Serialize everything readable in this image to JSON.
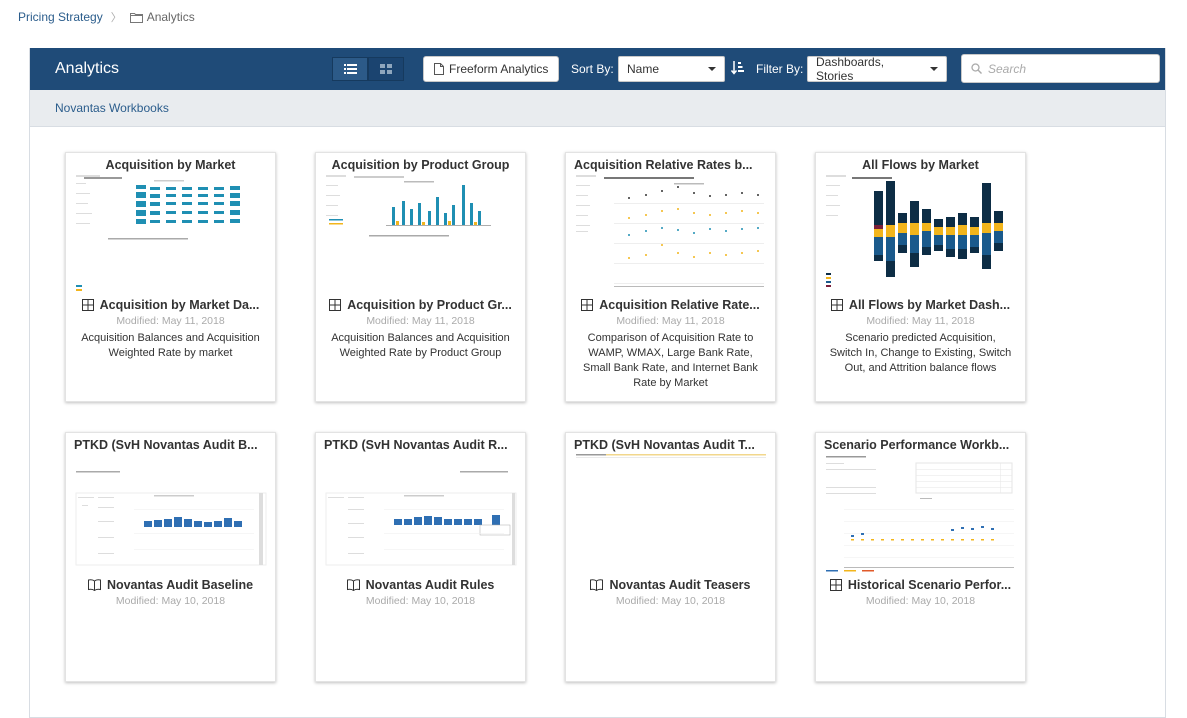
{
  "breadcrumb": {
    "root": "Pricing Strategy",
    "separator": "〉",
    "current": "Analytics"
  },
  "header": {
    "title": "Analytics",
    "freeform_label": "Freeform Analytics",
    "sort_label": "Sort By:",
    "sort_value": "Name",
    "filter_label": "Filter By:",
    "filter_value": "Dashboards, Stories",
    "search_placeholder": "Search"
  },
  "subheader": {
    "label": "Novantas Workbooks"
  },
  "cards": [
    {
      "title": "Acquisition by Market",
      "type": "dashboard",
      "name": "Acquisition by Market Da...",
      "modified": "Modified: May 11, 2018",
      "description": "Acquisition Balances and Acquisition Weighted Rate by market"
    },
    {
      "title": "Acquisition by Product Group",
      "type": "dashboard",
      "name": "Acquisition by Product Gr...",
      "modified": "Modified: May 11, 2018",
      "description": "Acquisition Balances and Acquisition Weighted Rate by Product Group"
    },
    {
      "title": "Acquisition Relative Rates b...",
      "type": "dashboard",
      "name": "Acquisition Relative Rate...",
      "modified": "Modified: May 11, 2018",
      "description": "Comparison of Acquisition Rate to WAMP, WMAX, Large Bank Rate, Small Bank Rate, and Internet Bank Rate by Market"
    },
    {
      "title": "All Flows by Market",
      "type": "dashboard",
      "name": "All Flows by Market Dash...",
      "modified": "Modified: May 11, 2018",
      "description": "Scenario predicted Acquisition, Switch In, Change to Existing, Switch Out, and Attrition balance flows"
    },
    {
      "title": "PTKD (SvH Novantas Audit B...",
      "type": "story",
      "name": "Novantas Audit Baseline",
      "modified": "Modified: May 10, 2018",
      "description": ""
    },
    {
      "title": "PTKD (SvH Novantas Audit R...",
      "type": "story",
      "name": "Novantas Audit Rules",
      "modified": "Modified: May 10, 2018",
      "description": ""
    },
    {
      "title": "PTKD (SvH Novantas Audit T...",
      "type": "story",
      "name": "Novantas Audit Teasers",
      "modified": "Modified: May 10, 2018",
      "description": ""
    },
    {
      "title": "Scenario Performance Workb...",
      "type": "dashboard",
      "name": "Historical Scenario Perfor...",
      "modified": "Modified: May 10, 2018",
      "description": ""
    }
  ],
  "colors": {
    "header": "#1f4b78",
    "teal": "#1f8fb3",
    "navy": "#0d2d45",
    "gold": "#f2b51c",
    "darkblue": "#1a5a8c"
  }
}
